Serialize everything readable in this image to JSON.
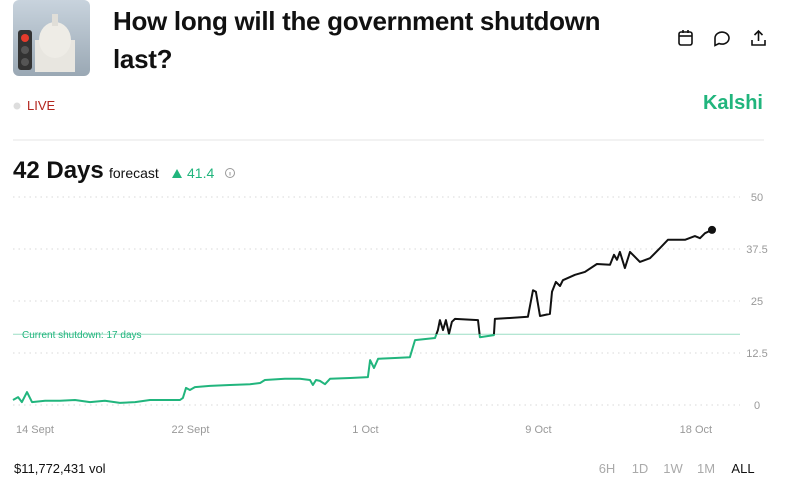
{
  "header": {
    "title": "How long will the government shutdown last?",
    "status": "LIVE",
    "brand": "Kalshi"
  },
  "forecast": {
    "headline": "42 Days",
    "label": "forecast",
    "change": 41.4
  },
  "footer": {
    "volume": "$11,772,431 vol",
    "ranges": [
      "6H",
      "1D",
      "1W",
      "1M",
      "ALL"
    ],
    "selected_range": "ALL"
  },
  "chart_data": {
    "type": "line",
    "x": [
      12.87,
      13.13,
      13.33,
      13.59,
      13.85,
      14.52,
      15.29,
      16.06,
      16.83,
      17.6,
      18.37,
      19.15,
      19.92,
      20.69,
      21.46,
      21.61,
      21.77,
      21.97,
      22.23,
      23.0,
      24.03,
      25.06,
      25.58,
      25.83,
      26.86,
      27.63,
      28.15,
      28.3,
      28.46,
      28.66,
      28.92,
      29.18,
      30.21,
      31.13,
      31.24,
      31.44,
      31.65,
      32.52,
      33.29,
      33.55,
      34.58,
      34.73,
      34.83,
      34.99,
      35.14,
      35.3,
      35.45,
      35.61,
      36.79,
      36.89,
      37.61,
      37.66,
      39.36,
      39.62,
      39.77,
      39.98,
      40.49,
      40.6,
      40.8,
      41.01,
      41.16,
      41.78,
      42.29,
      42.91,
      43.58,
      43.79,
      43.94,
      44.09,
      44.35,
      44.61,
      45.12,
      45.64,
      46.15,
      46.56,
      47.44,
      47.95,
      48.21,
      48.47,
      48.83
    ],
    "series": [
      {
        "color": "#111111",
        "below_color": "#21b57d",
        "values": [
          1.2,
          1.9,
          0.7,
          3.1,
          0.7,
          1.0,
          1.0,
          1.2,
          0.7,
          1.0,
          0.5,
          0.7,
          1.2,
          1.2,
          1.2,
          1.7,
          4.1,
          3.6,
          4.3,
          4.6,
          4.8,
          5.0,
          5.3,
          6.0,
          6.3,
          6.3,
          6.0,
          4.8,
          6.0,
          5.8,
          5.0,
          6.3,
          6.5,
          6.7,
          10.8,
          8.9,
          11.1,
          11.3,
          11.5,
          15.6,
          16.1,
          18.0,
          20.4,
          18.0,
          20.4,
          17.1,
          20.0,
          20.7,
          20.4,
          16.3,
          16.8,
          20.7,
          21.2,
          27.6,
          27.2,
          21.4,
          21.9,
          27.2,
          29.6,
          28.6,
          30.0,
          31.3,
          32.0,
          33.9,
          33.7,
          36.1,
          34.9,
          36.8,
          32.9,
          36.8,
          34.4,
          35.3,
          37.7,
          39.7,
          39.7,
          40.6,
          40.1,
          41.3,
          42.1
        ]
      }
    ],
    "xlim": [
      12.87,
      50.27
    ],
    "xticks": [
      {
        "value": 14,
        "label": "14 Sept"
      },
      {
        "value": 22,
        "label": "22 Sept"
      },
      {
        "value": 31,
        "label": "1 Oct"
      },
      {
        "value": 39.9,
        "label": "9 Oct"
      },
      {
        "value": 48,
        "label": "18 Oct"
      }
    ],
    "ylim": [
      0,
      50
    ],
    "yticks": [
      0,
      12.5,
      25,
      37.5,
      50
    ],
    "y_axis_side": "right",
    "grid": true,
    "reference_line": {
      "value": 17,
      "label": "Current shutdown: 17 days",
      "color": "#21b57d"
    }
  }
}
